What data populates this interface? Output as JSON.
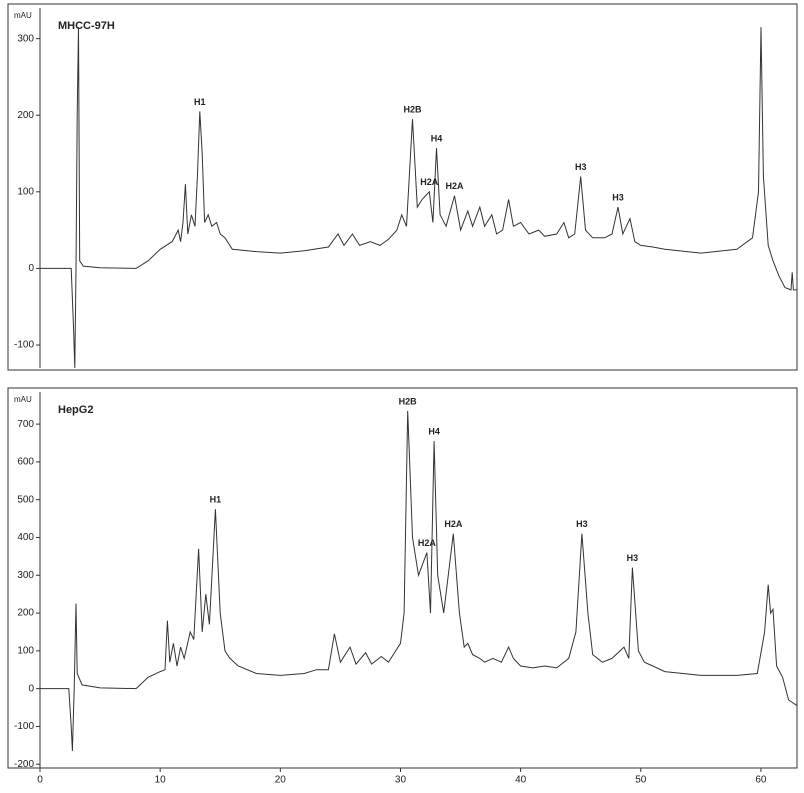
{
  "chart_data": [
    {
      "type": "line",
      "title": "MHCC-97H",
      "y_label": "mAU",
      "xlim": [
        0,
        63
      ],
      "ylim": [
        -130,
        340
      ],
      "yticks": [
        -100,
        0,
        100,
        200,
        300
      ],
      "series": [
        {
          "name": "MHCC-97H",
          "color": "#333333",
          "x": [
            0,
            2.6,
            2.8,
            2.9,
            3.0,
            3.1,
            3.2,
            3.3,
            3.6,
            5,
            8,
            9,
            10,
            11,
            11.5,
            11.7,
            11.9,
            12.1,
            12.3,
            12.6,
            12.9,
            13.1,
            13.3,
            13.5,
            13.7,
            14,
            14.3,
            14.7,
            15,
            15.4,
            16,
            18,
            20,
            22,
            24,
            24.8,
            25.3,
            26,
            26.6,
            27.5,
            28.3,
            29,
            29.7,
            30.1,
            30.5,
            31.0,
            31.4,
            31.8,
            32.4,
            32.7,
            33.0,
            33.3,
            33.8,
            34.5,
            35,
            35.6,
            36,
            36.6,
            37,
            37.6,
            38,
            38.5,
            39,
            39.4,
            40,
            40.7,
            41.5,
            42,
            43,
            43.6,
            44,
            44.5,
            45.0,
            45.4,
            46,
            47,
            47.6,
            48.1,
            48.5,
            49.1,
            49.5,
            50,
            51,
            52,
            55,
            58,
            59.3,
            59.8,
            60.0,
            60.2,
            60.6,
            61,
            61.5,
            62,
            62.5,
            62.6,
            62.7,
            63
          ],
          "values": [
            0,
            0,
            -80,
            -130,
            0,
            200,
            315,
            10,
            3,
            1,
            0,
            10,
            25,
            35,
            50,
            35,
            60,
            110,
            45,
            70,
            55,
            120,
            205,
            150,
            60,
            70,
            55,
            60,
            45,
            40,
            25,
            22,
            20,
            23,
            28,
            45,
            30,
            45,
            30,
            35,
            30,
            38,
            50,
            70,
            55,
            195,
            80,
            90,
            100,
            60,
            157,
            70,
            55,
            95,
            50,
            75,
            55,
            80,
            55,
            70,
            45,
            50,
            90,
            55,
            60,
            45,
            50,
            42,
            45,
            60,
            40,
            45,
            120,
            50,
            40,
            40,
            45,
            80,
            45,
            65,
            35,
            30,
            28,
            25,
            20,
            25,
            40,
            100,
            315,
            120,
            30,
            10,
            -10,
            -25,
            -28,
            -5,
            -28,
            -28
          ]
        }
      ],
      "annotations": [
        {
          "text": "H1",
          "x": 13.3,
          "y": 205
        },
        {
          "text": "H2B",
          "x": 31.0,
          "y": 195
        },
        {
          "text": "H2A",
          "x": 32.4,
          "y": 100
        },
        {
          "text": "H4",
          "x": 33.0,
          "y": 157
        },
        {
          "text": "H2A",
          "x": 34.5,
          "y": 95
        },
        {
          "text": "H3",
          "x": 45.0,
          "y": 120
        },
        {
          "text": "H3",
          "x": 48.1,
          "y": 80
        }
      ]
    },
    {
      "type": "line",
      "title": "HepG2",
      "y_label": "mAU",
      "xlim": [
        0,
        63
      ],
      "ylim": [
        -210,
        785
      ],
      "yticks": [
        -200,
        -100,
        0,
        100,
        200,
        300,
        400,
        500,
        600,
        700
      ],
      "xticks": [
        0,
        10,
        20,
        30,
        40,
        50,
        60
      ],
      "series": [
        {
          "name": "HepG2",
          "color": "#333333",
          "x": [
            0,
            2.4,
            2.6,
            2.7,
            2.85,
            3.0,
            3.1,
            3.5,
            5,
            8,
            9,
            10,
            10.4,
            10.6,
            10.8,
            11.1,
            11.4,
            11.7,
            12,
            12.5,
            12.8,
            13.2,
            13.5,
            13.8,
            14.1,
            14.6,
            15,
            15.4,
            15.8,
            16.5,
            18,
            20,
            22,
            23,
            24,
            24.5,
            25,
            25.8,
            26.3,
            27.1,
            27.6,
            28.4,
            29,
            30,
            30.3,
            30.6,
            31,
            31.5,
            32.2,
            32.5,
            32.8,
            33.1,
            33.6,
            34.4,
            34.9,
            35.3,
            35.6,
            36,
            36.6,
            37,
            37.7,
            38.4,
            39,
            39.4,
            40,
            41,
            42,
            43,
            44,
            44.6,
            45.1,
            45.6,
            46,
            46.8,
            47.6,
            48.6,
            49,
            49.3,
            49.8,
            50.3,
            51,
            52,
            55,
            58,
            59.7,
            60.3,
            60.6,
            60.8,
            61,
            61.3,
            61.8,
            62.3,
            63
          ],
          "values": [
            0,
            0,
            -100,
            -165,
            0,
            225,
            40,
            10,
            2,
            0,
            30,
            45,
            50,
            180,
            70,
            120,
            60,
            110,
            80,
            150,
            130,
            370,
            150,
            250,
            170,
            475,
            200,
            100,
            80,
            60,
            40,
            35,
            40,
            50,
            50,
            145,
            70,
            110,
            65,
            95,
            65,
            85,
            70,
            120,
            200,
            735,
            400,
            300,
            360,
            200,
            655,
            300,
            200,
            410,
            200,
            110,
            120,
            90,
            80,
            70,
            80,
            70,
            110,
            80,
            60,
            55,
            60,
            55,
            80,
            150,
            410,
            200,
            90,
            70,
            80,
            110,
            80,
            320,
            100,
            70,
            60,
            45,
            35,
            35,
            40,
            150,
            275,
            200,
            210,
            60,
            30,
            -30,
            -45
          ]
        }
      ],
      "annotations": [
        {
          "text": "H1",
          "x": 14.6,
          "y": 475
        },
        {
          "text": "H2B",
          "x": 30.6,
          "y": 735
        },
        {
          "text": "H2A",
          "x": 32.2,
          "y": 360
        },
        {
          "text": "H4",
          "x": 32.8,
          "y": 655
        },
        {
          "text": "H2A",
          "x": 34.4,
          "y": 410
        },
        {
          "text": "H3",
          "x": 45.1,
          "y": 410
        },
        {
          "text": "H3",
          "x": 49.3,
          "y": 320
        }
      ]
    }
  ]
}
